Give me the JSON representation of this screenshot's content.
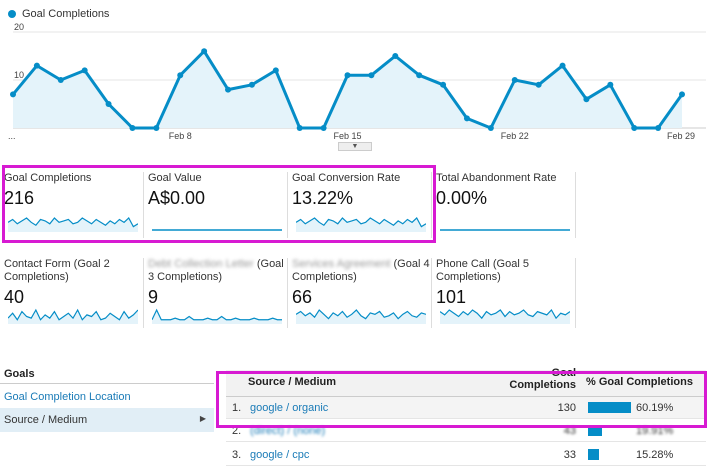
{
  "chart": {
    "legend": "Goal Completions",
    "color": "#058dc7"
  },
  "chart_data": {
    "type": "area",
    "series": [
      {
        "name": "Goal Completions",
        "values": [
          7,
          13,
          10,
          12,
          5,
          0,
          0,
          11,
          16,
          8,
          9,
          12,
          0,
          0,
          11,
          11,
          15,
          11,
          9,
          2,
          0,
          10,
          9,
          13,
          6,
          9,
          0,
          0,
          7
        ]
      }
    ],
    "x_tick_labels": [
      "...",
      "Feb 8",
      "Feb 15",
      "Feb 22",
      "Feb 29"
    ],
    "y_tick_labels": [
      "20",
      "10"
    ],
    "ylim": [
      0,
      20
    ],
    "grid": true
  },
  "tiles_row1": [
    {
      "title": "Goal Completions",
      "value": "216",
      "spark": [
        6,
        8,
        5,
        7,
        9,
        6,
        4,
        8,
        7,
        5,
        9,
        6,
        7,
        8,
        5,
        6,
        9,
        7,
        5,
        8,
        6,
        4,
        7,
        5,
        8,
        6,
        9,
        3,
        5
      ]
    },
    {
      "title": "Goal Value",
      "value": "A$0.00",
      "spark": []
    },
    {
      "title": "Goal Conversion Rate",
      "value": "13.22%",
      "spark": [
        6,
        8,
        5,
        7,
        9,
        6,
        4,
        8,
        7,
        5,
        9,
        6,
        7,
        8,
        5,
        6,
        9,
        7,
        5,
        8,
        6,
        4,
        7,
        5,
        8,
        6,
        9,
        3,
        5
      ]
    },
    {
      "title": "Total Abandonment Rate",
      "value": "0.00%",
      "spark": []
    }
  ],
  "tiles_row2": [
    {
      "title": "Contact Form (Goal 2 Completions)",
      "blur": "",
      "value": "40",
      "spark": [
        3,
        6,
        2,
        7,
        4,
        3,
        8,
        2,
        5,
        3,
        7,
        2,
        4,
        6,
        3,
        8,
        2,
        5,
        4,
        7,
        2,
        3,
        6,
        4,
        2,
        7,
        3,
        5,
        8
      ]
    },
    {
      "title": "(Goal 3 Completions)",
      "blur": "Debt Collection Letter",
      "value": "9",
      "spark": [
        2,
        8,
        2,
        2,
        2,
        3,
        2,
        2,
        4,
        2,
        2,
        2,
        3,
        2,
        2,
        4,
        2,
        2,
        3,
        2,
        2,
        2,
        3,
        2,
        2,
        2,
        3,
        2,
        2
      ]
    },
    {
      "title": "(Goal 4 Completions)",
      "blur": "Services Agreement",
      "value": "66",
      "spark": [
        6,
        8,
        5,
        7,
        4,
        9,
        6,
        3,
        7,
        5,
        8,
        4,
        6,
        9,
        5,
        3,
        7,
        6,
        8,
        4,
        5,
        7,
        3,
        6,
        8,
        5,
        4,
        7,
        6
      ]
    },
    {
      "title": "Phone Call (Goal 5 Completions)",
      "blur": "",
      "value": "101",
      "spark": [
        7,
        5,
        8,
        6,
        4,
        7,
        5,
        8,
        6,
        3,
        7,
        5,
        6,
        8,
        4,
        7,
        5,
        6,
        8,
        5,
        4,
        7,
        6,
        5,
        8,
        3,
        6,
        5,
        7
      ]
    }
  ],
  "goals_panel": {
    "heading": "Goals",
    "link": "Goal Completion Location",
    "selected": "Source / Medium"
  },
  "table": {
    "col_source": "Source / Medium",
    "col_completions_1": "Goal",
    "col_completions_2": "Completions",
    "col_pct": "% Goal Completions",
    "rows": [
      {
        "num": "1.",
        "source": "google / organic",
        "count": "130",
        "pct": "60.19%",
        "share": 0.6019
      },
      {
        "num": "2.",
        "source": "(direct) / (none)",
        "count": "43",
        "pct": "19.91%",
        "share": 0.1991
      },
      {
        "num": "3.",
        "source": "google / cpc",
        "count": "33",
        "pct": "15.28%",
        "share": 0.1528
      }
    ]
  },
  "highlight_color": "#d71ad2"
}
